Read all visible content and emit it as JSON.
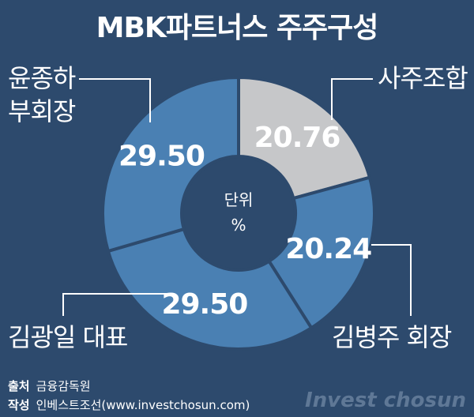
{
  "chart_data": {
    "type": "pie",
    "title": "MBK파트너스 주주구성",
    "categories": [
      "사주조합",
      "김병주 회장",
      "김광일 대표",
      "윤종하 부회장"
    ],
    "values": [
      20.76,
      20.24,
      29.5,
      29.5
    ],
    "value_labels": [
      "20.76",
      "20.24",
      "29.50",
      "29.50"
    ],
    "colors": [
      "#c6c7c9",
      "#4a80b3",
      "#4a80b3",
      "#4a80b3"
    ],
    "unit_label": "단위",
    "unit": "%"
  },
  "source": {
    "label": "출처",
    "text": "금융감독원"
  },
  "credit": {
    "label": "작성",
    "text": "인베스트조선(www.investchosun.com)"
  },
  "watermark": "Invest chosun"
}
